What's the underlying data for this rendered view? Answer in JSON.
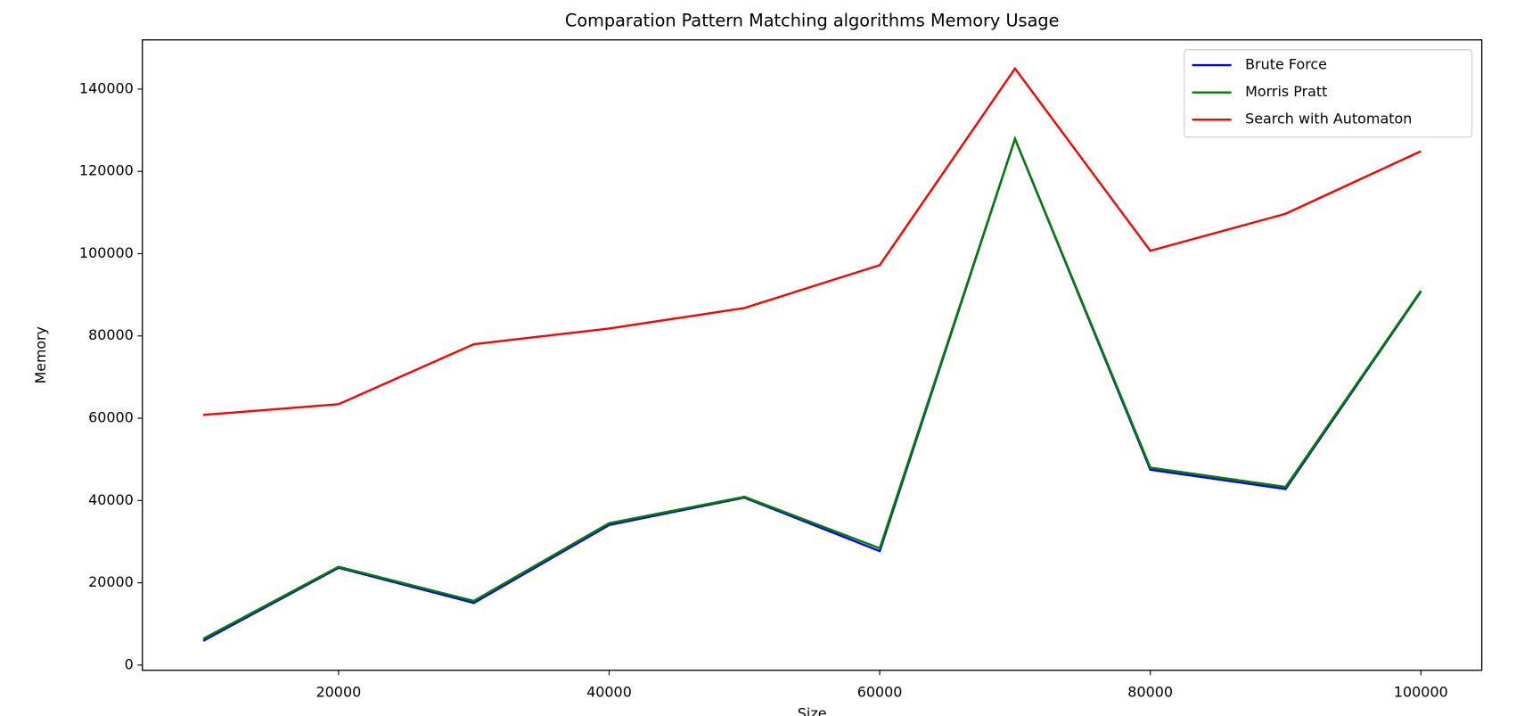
{
  "chart_data": {
    "type": "line",
    "title": "Comparation Pattern Matching algorithms Memory Usage",
    "xlabel": "Size",
    "ylabel": "Memory",
    "x": [
      10000,
      20000,
      30000,
      40000,
      50000,
      60000,
      70000,
      80000,
      90000,
      100000
    ],
    "series": [
      {
        "name": "Brute Force",
        "color": "#0000ff",
        "values": [
          5900,
          23650,
          15100,
          34050,
          40700,
          27700,
          127900,
          47500,
          42800,
          90800
        ]
      },
      {
        "name": "Morris Pratt",
        "color": "#008000",
        "values": [
          6400,
          23900,
          15600,
          34500,
          40900,
          28400,
          127900,
          48000,
          43300,
          91000
        ]
      },
      {
        "name": "Search with Automaton",
        "color": "#ff0000",
        "values": [
          60800,
          63400,
          78000,
          81800,
          86800,
          97200,
          145000,
          100700,
          109700,
          124900
        ]
      }
    ],
    "xlim": [
      5500,
      104500
    ],
    "xticks": [
      20000,
      40000,
      60000,
      80000,
      100000
    ],
    "ylim": [
      -1265,
      151965
    ],
    "yticks": [
      0,
      20000,
      40000,
      60000,
      80000,
      100000,
      120000,
      140000
    ],
    "legend": "upper right"
  }
}
